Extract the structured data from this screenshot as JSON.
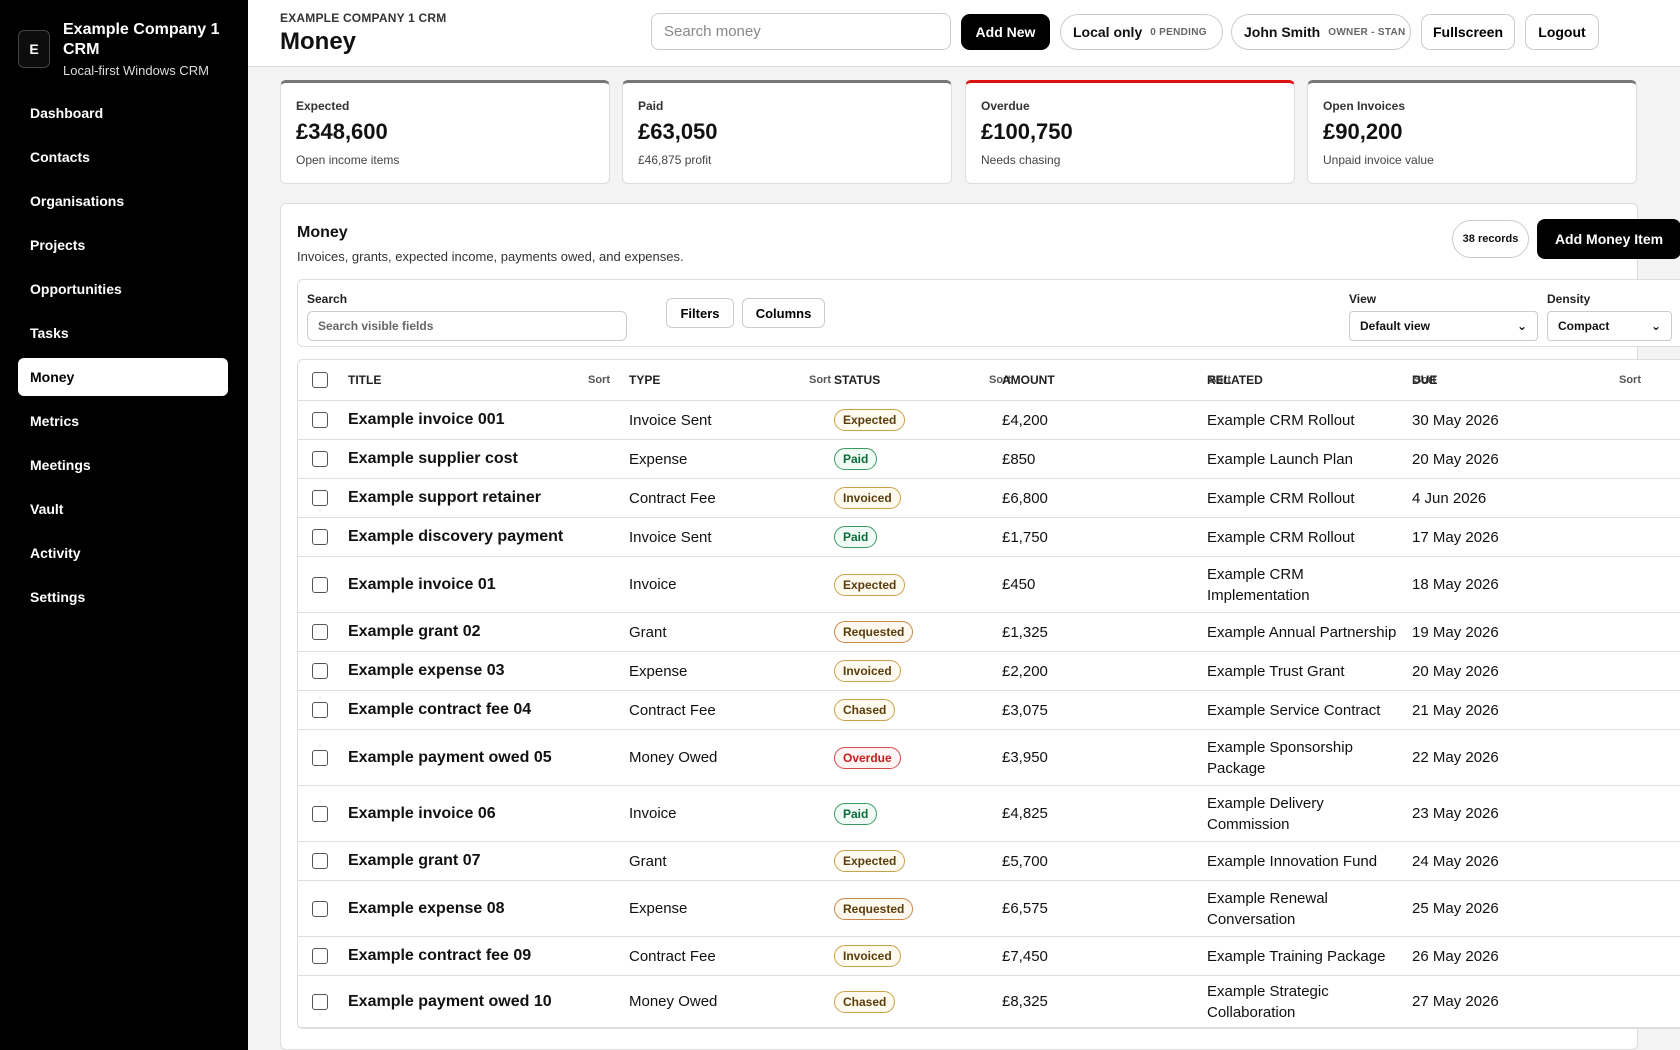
{
  "sidebar": {
    "logo_letter": "E",
    "company": "Example Company 1 CRM",
    "tagline": "Local-first Windows CRM",
    "items": [
      {
        "label": "Dashboard"
      },
      {
        "label": "Contacts"
      },
      {
        "label": "Organisations"
      },
      {
        "label": "Projects"
      },
      {
        "label": "Opportunities"
      },
      {
        "label": "Tasks"
      },
      {
        "label": "Money"
      },
      {
        "label": "Metrics"
      },
      {
        "label": "Meetings"
      },
      {
        "label": "Vault"
      },
      {
        "label": "Activity"
      },
      {
        "label": "Settings"
      }
    ],
    "active_item": "Money"
  },
  "header": {
    "breadcrumb": "EXAMPLE COMPANY 1 CRM",
    "title": "Money",
    "search_placeholder": "Search money",
    "add_new": "Add New",
    "sync_label": "Local only",
    "sync_status": "0 PENDING",
    "user_name": "John Smith",
    "user_role": "OWNER - STAN",
    "fullscreen": "Fullscreen",
    "logout": "Logout"
  },
  "summary": [
    {
      "label": "Expected",
      "value": "£348,600",
      "sub": "Open income items"
    },
    {
      "label": "Paid",
      "value": "£63,050",
      "sub": "£46,875 profit"
    },
    {
      "label": "Overdue",
      "value": "£100,750",
      "sub": "Needs chasing"
    },
    {
      "label": "Open Invoices",
      "value": "£90,200",
      "sub": "Unpaid invoice value"
    }
  ],
  "panel": {
    "title": "Money",
    "description": "Invoices, grants, expected income, payments owed, and expenses.",
    "records": "38 records",
    "add_button": "Add Money Item"
  },
  "filters": {
    "search_label": "Search",
    "search_placeholder": "Search visible fields",
    "filters_button": "Filters",
    "columns_button": "Columns",
    "view_label": "View",
    "view_value": "Default view",
    "density_label": "Density",
    "density_value": "Compact"
  },
  "table": {
    "sort_label": "Sort",
    "headers": [
      "TITLE",
      "TYPE",
      "STATUS",
      "AMOUNT",
      "RELATED",
      "DUE"
    ],
    "rows": [
      {
        "title": "Example invoice 001",
        "type": "Invoice Sent",
        "status": "Expected",
        "amount": "£4,200",
        "related": "Example CRM Rollout",
        "due": "30 May 2026"
      },
      {
        "title": "Example supplier cost",
        "type": "Expense",
        "status": "Paid",
        "amount": "£850",
        "related": "Example Launch Plan",
        "due": "20 May 2026"
      },
      {
        "title": "Example support retainer",
        "type": "Contract Fee",
        "status": "Invoiced",
        "amount": "£6,800",
        "related": "Example CRM Rollout",
        "due": "4 Jun 2026"
      },
      {
        "title": "Example discovery payment",
        "type": "Invoice Sent",
        "status": "Paid",
        "amount": "£1,750",
        "related": "Example CRM Rollout",
        "due": "17 May 2026"
      },
      {
        "title": "Example invoice 01",
        "type": "Invoice",
        "status": "Expected",
        "amount": "£450",
        "related": "Example CRM Implementation",
        "due": "18 May 2026"
      },
      {
        "title": "Example grant 02",
        "type": "Grant",
        "status": "Requested",
        "amount": "£1,325",
        "related": "Example Annual Partnership",
        "due": "19 May 2026"
      },
      {
        "title": "Example expense 03",
        "type": "Expense",
        "status": "Invoiced",
        "amount": "£2,200",
        "related": "Example Trust Grant",
        "due": "20 May 2026"
      },
      {
        "title": "Example contract fee 04",
        "type": "Contract Fee",
        "status": "Chased",
        "amount": "£3,075",
        "related": "Example Service Contract",
        "due": "21 May 2026"
      },
      {
        "title": "Example payment owed 05",
        "type": "Money Owed",
        "status": "Overdue",
        "amount": "£3,950",
        "related": "Example Sponsorship Package",
        "due": "22 May 2026"
      },
      {
        "title": "Example invoice 06",
        "type": "Invoice",
        "status": "Paid",
        "amount": "£4,825",
        "related": "Example Delivery Commission",
        "due": "23 May 2026"
      },
      {
        "title": "Example grant 07",
        "type": "Grant",
        "status": "Expected",
        "amount": "£5,700",
        "related": "Example Innovation Fund",
        "due": "24 May 2026"
      },
      {
        "title": "Example expense 08",
        "type": "Expense",
        "status": "Requested",
        "amount": "£6,575",
        "related": "Example Renewal Conversation",
        "due": "25 May 2026"
      },
      {
        "title": "Example contract fee 09",
        "type": "Contract Fee",
        "status": "Invoiced",
        "amount": "£7,450",
        "related": "Example Training Package",
        "due": "26 May 2026"
      },
      {
        "title": "Example payment owed 10",
        "type": "Money Owed",
        "status": "Chased",
        "amount": "£8,325",
        "related": "Example Strategic Collaboration",
        "due": "27 May 2026"
      }
    ]
  }
}
